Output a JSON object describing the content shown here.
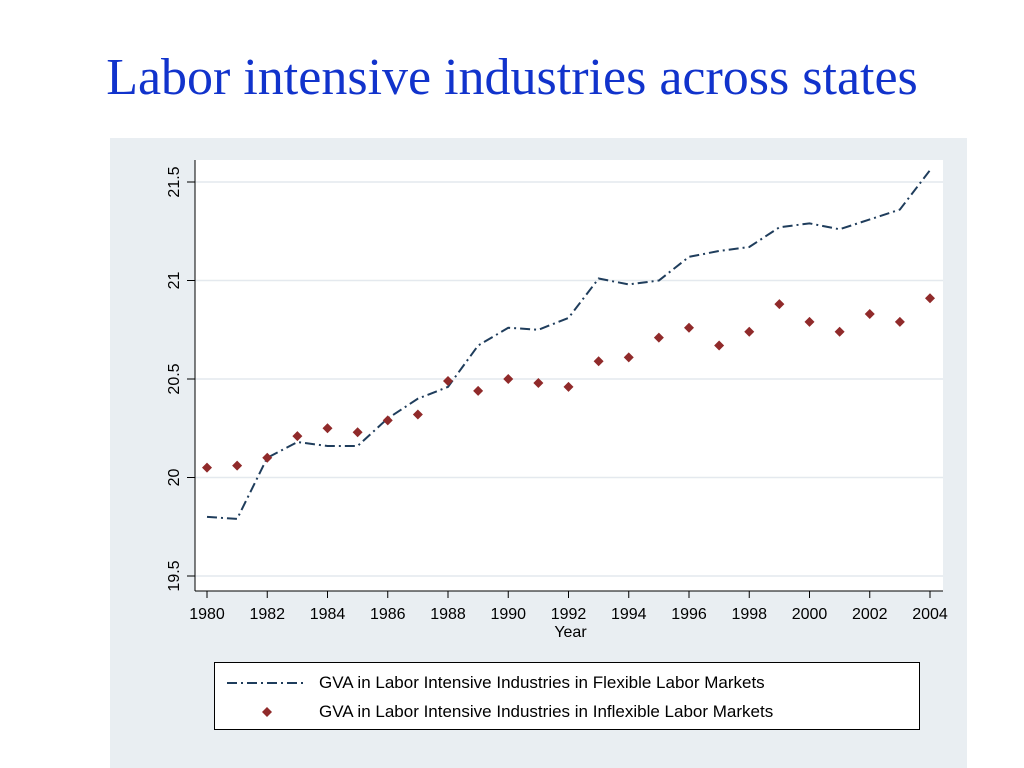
{
  "slide": {
    "title": "Labor intensive industries across states"
  },
  "colors": {
    "title": "#1133cc",
    "panel_background": "#e9eef2",
    "flexible_series": "#1f3d5c",
    "inflexible_series": "#902a2a"
  },
  "chart_data": {
    "type": "line",
    "title": "",
    "xlabel": "Year",
    "ylabel": "",
    "xlim": [
      1980,
      2004
    ],
    "ylim": [
      19.5,
      21.5
    ],
    "x_ticks": [
      "1980",
      "1982",
      "1984",
      "1986",
      "1988",
      "1990",
      "1992",
      "1994",
      "1996",
      "1998",
      "2000",
      "2002",
      "2004"
    ],
    "y_ticks": [
      "19.5",
      "20",
      "20.5",
      "21",
      "21.5"
    ],
    "grid": true,
    "legend_position": "bottom",
    "x": [
      1980,
      1981,
      1982,
      1983,
      1984,
      1985,
      1986,
      1987,
      1988,
      1989,
      1990,
      1991,
      1992,
      1993,
      1994,
      1995,
      1996,
      1997,
      1998,
      1999,
      2000,
      2001,
      2002,
      2003,
      2004
    ],
    "series": [
      {
        "name": "GVA in Labor Intensive Industries in Flexible Labor Markets",
        "style": "dash-dot line",
        "values": [
          19.8,
          19.79,
          20.1,
          20.18,
          20.16,
          20.16,
          20.3,
          20.4,
          20.46,
          20.67,
          20.76,
          20.75,
          20.81,
          21.01,
          20.98,
          21.0,
          21.12,
          21.15,
          21.17,
          21.27,
          21.29,
          21.26,
          21.31,
          21.36,
          21.56
        ]
      },
      {
        "name": "GVA in Labor Intensive Industries in Inflexible Labor Markets",
        "style": "diamond markers",
        "values": [
          20.05,
          20.06,
          20.1,
          20.21,
          20.25,
          20.23,
          20.29,
          20.32,
          20.49,
          20.44,
          20.5,
          20.48,
          20.46,
          20.59,
          20.61,
          20.71,
          20.76,
          20.67,
          20.74,
          20.88,
          20.79,
          20.74,
          20.83,
          20.79,
          20.91
        ]
      }
    ]
  }
}
